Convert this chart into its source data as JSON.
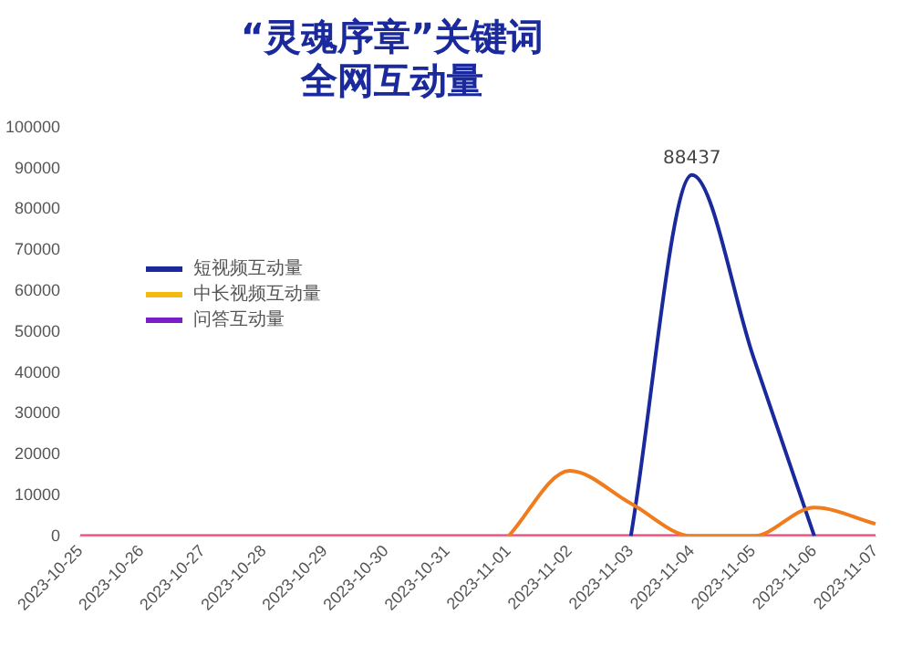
{
  "chart_data": {
    "type": "line",
    "title": "“灵魂序章”关键词全网互动量",
    "categories": [
      "2023-10-25",
      "2023-10-26",
      "2023-10-27",
      "2023-10-28",
      "2023-10-29",
      "2023-10-30",
      "2023-10-31",
      "2023-11-01",
      "2023-11-02",
      "2023-11-03",
      "2023-11-04",
      "2023-11-05",
      "2023-11-06",
      "2023-11-07"
    ],
    "series": [
      {
        "color": "#f07c1e",
        "values": [
          null,
          null,
          null,
          null,
          null,
          null,
          null,
          0,
          16000,
          8000,
          0,
          0,
          7000,
          3000
        ]
      },
      {
        "name": "短视频互动量",
        "color": "#1a2a9c",
        "values": [
          null,
          null,
          null,
          null,
          null,
          null,
          null,
          null,
          null,
          0,
          88437,
          44000,
          0,
          null
        ],
        "value_labels": [
          null,
          null,
          null,
          null,
          null,
          null,
          null,
          null,
          null,
          null,
          "88437",
          null,
          null,
          null
        ]
      },
      {
        "name": "中长视频互动量",
        "color": "#f5b90f",
        "values": [
          null,
          null,
          null,
          null,
          null,
          null,
          null,
          null,
          null,
          null,
          null,
          null,
          null,
          null
        ]
      },
      {
        "name": "问答互动量",
        "color": "#7a1fc8",
        "values": [
          null,
          null,
          null,
          null,
          null,
          null,
          null,
          null,
          null,
          null,
          null,
          null,
          null,
          null
        ]
      },
      {
        "color": "#e0457b",
        "values": [
          0,
          0,
          0,
          0,
          0,
          0,
          0,
          0,
          0,
          0,
          0,
          0,
          0,
          0
        ]
      }
    ],
    "ylim": [
      0,
      100000
    ],
    "yticks": [
      0,
      10000,
      20000,
      30000,
      40000,
      50000,
      60000,
      70000,
      80000,
      90000,
      100000
    ],
    "grid": false,
    "legend": "left",
    "marker": "none",
    "line_style": "solid"
  }
}
